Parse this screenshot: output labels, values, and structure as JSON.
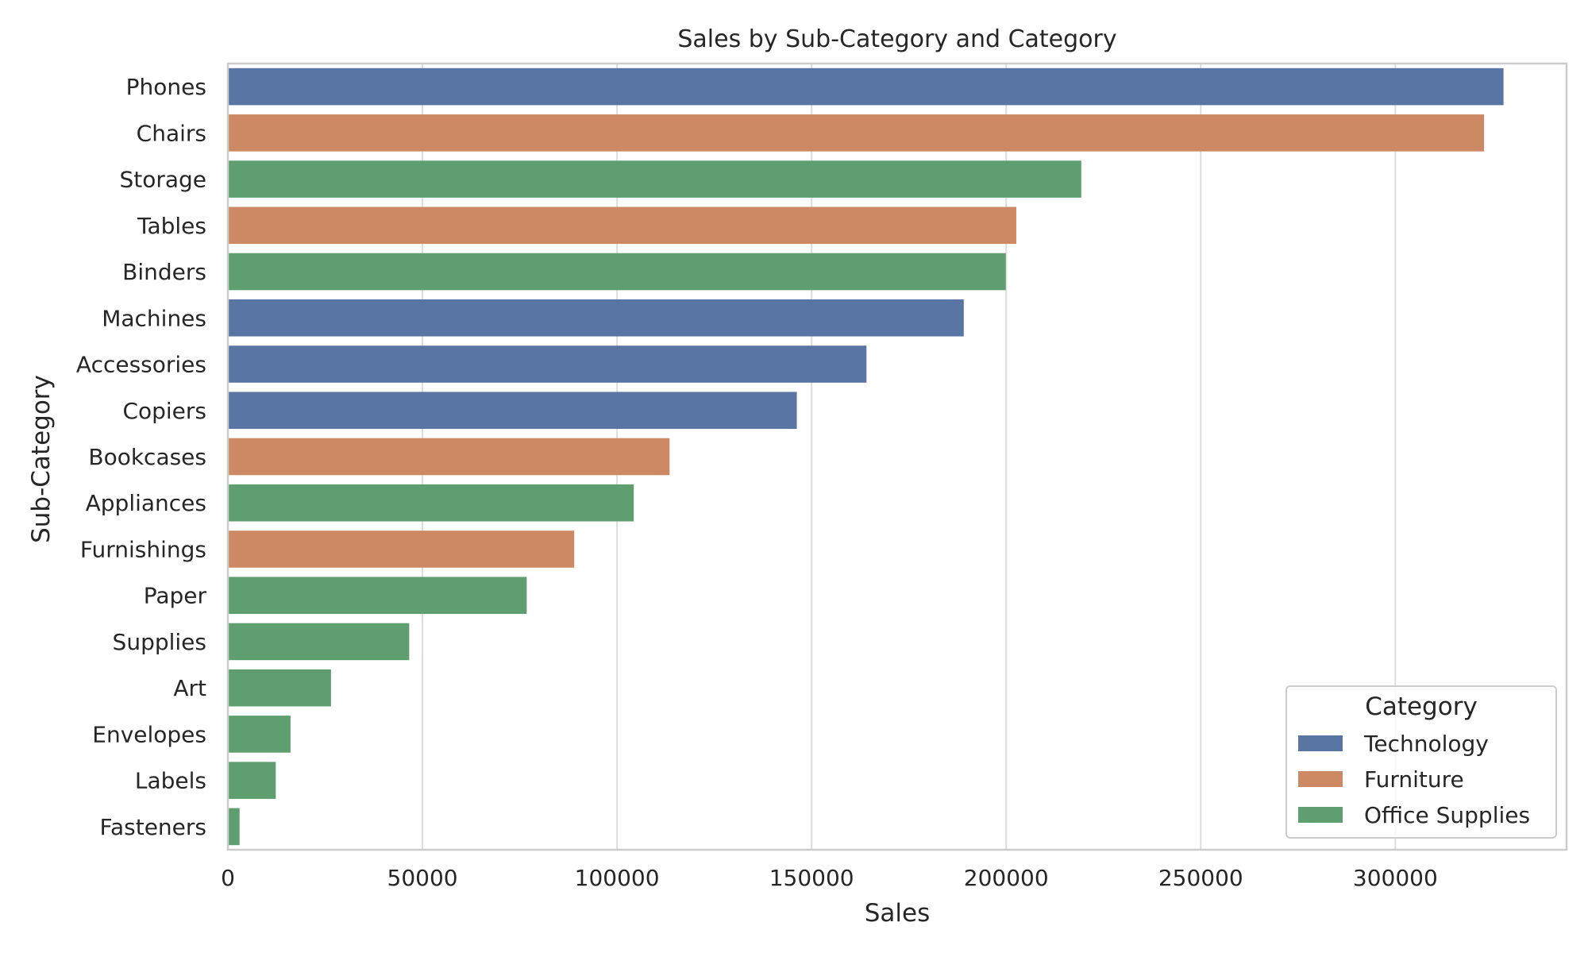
{
  "chart_data": {
    "type": "bar",
    "orientation": "horizontal",
    "title": "Sales by Sub-Category and Category",
    "xlabel": "Sales",
    "ylabel": "Sub-Category",
    "xlim": [
      0,
      344000
    ],
    "xticks": [
      0,
      50000,
      100000,
      150000,
      200000,
      250000,
      300000
    ],
    "xtick_labels": [
      "0",
      "50000",
      "100000",
      "150000",
      "200000",
      "250000",
      "300000"
    ],
    "grid": "x",
    "legend": {
      "title": "Category",
      "placement": "bottom-right",
      "entries": [
        {
          "name": "Technology",
          "color": "#5875a4"
        },
        {
          "name": "Furniture",
          "color": "#cc8963"
        },
        {
          "name": "Office Supplies",
          "color": "#5f9e6e"
        }
      ]
    },
    "categories": [
      "Phones",
      "Chairs",
      "Storage",
      "Tables",
      "Binders",
      "Machines",
      "Accessories",
      "Copiers",
      "Bookcases",
      "Appliances",
      "Furnishings",
      "Paper",
      "Supplies",
      "Art",
      "Envelopes",
      "Labels",
      "Fasteners"
    ],
    "values": [
      327800,
      322800,
      219300,
      202600,
      199900,
      189100,
      164100,
      146200,
      113500,
      104300,
      89000,
      76800,
      46600,
      26500,
      16100,
      12300,
      3000
    ],
    "group": [
      "Technology",
      "Furniture",
      "Office Supplies",
      "Furniture",
      "Office Supplies",
      "Technology",
      "Technology",
      "Technology",
      "Furniture",
      "Office Supplies",
      "Furniture",
      "Office Supplies",
      "Office Supplies",
      "Office Supplies",
      "Office Supplies",
      "Office Supplies",
      "Office Supplies"
    ]
  }
}
